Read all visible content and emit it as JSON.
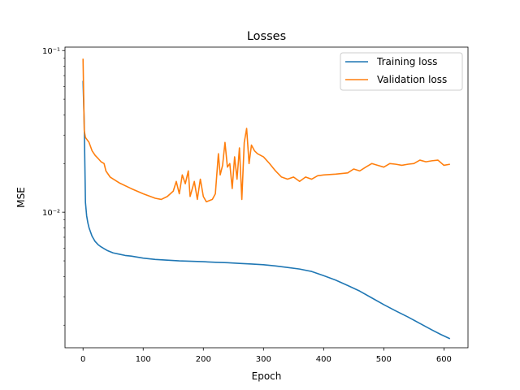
{
  "chart_data": {
    "type": "line",
    "title": "Losses",
    "xlabel": "Epoch",
    "ylabel": "MSE",
    "xlim": [
      -30,
      640
    ],
    "ylim": [
      0.00145,
      0.105
    ],
    "yscale": "log",
    "x_ticks": [
      0,
      100,
      200,
      300,
      400,
      500,
      600
    ],
    "y_major_ticks": [
      {
        "value": 0.01,
        "label": "10⁻²"
      },
      {
        "value": 0.1,
        "label": "10⁻¹"
      }
    ],
    "y_minor_ticks": [
      0.002,
      0.003,
      0.004,
      0.005,
      0.006,
      0.007,
      0.008,
      0.009,
      0.02,
      0.03,
      0.04,
      0.05,
      0.06,
      0.07,
      0.08,
      0.09
    ],
    "grid": false,
    "legend_position": "top-right",
    "series": [
      {
        "name": "Training loss",
        "color": "#1f77b4",
        "points": [
          [
            0,
            0.065
          ],
          [
            2,
            0.035
          ],
          [
            4,
            0.0115
          ],
          [
            6,
            0.0095
          ],
          [
            8,
            0.0086
          ],
          [
            10,
            0.008
          ],
          [
            15,
            0.0071
          ],
          [
            20,
            0.0066
          ],
          [
            25,
            0.0063
          ],
          [
            30,
            0.0061
          ],
          [
            40,
            0.0058
          ],
          [
            50,
            0.0056
          ],
          [
            60,
            0.0055
          ],
          [
            70,
            0.0054
          ],
          [
            80,
            0.00535
          ],
          [
            100,
            0.0052
          ],
          [
            120,
            0.0051
          ],
          [
            140,
            0.00505
          ],
          [
            160,
            0.005
          ],
          [
            180,
            0.00497
          ],
          [
            200,
            0.00494
          ],
          [
            220,
            0.0049
          ],
          [
            240,
            0.00487
          ],
          [
            260,
            0.00482
          ],
          [
            280,
            0.00478
          ],
          [
            300,
            0.00473
          ],
          [
            320,
            0.00465
          ],
          [
            340,
            0.00455
          ],
          [
            360,
            0.00445
          ],
          [
            380,
            0.0043
          ],
          [
            400,
            0.00405
          ],
          [
            420,
            0.0038
          ],
          [
            440,
            0.00352
          ],
          [
            460,
            0.00325
          ],
          [
            480,
            0.00295
          ],
          [
            500,
            0.00268
          ],
          [
            520,
            0.00245
          ],
          [
            540,
            0.00225
          ],
          [
            560,
            0.00205
          ],
          [
            580,
            0.00187
          ],
          [
            595,
            0.00175
          ],
          [
            610,
            0.00165
          ]
        ]
      },
      {
        "name": "Validation loss",
        "color": "#ff7f0e",
        "points": [
          [
            0,
            0.089
          ],
          [
            2,
            0.032
          ],
          [
            4,
            0.029
          ],
          [
            10,
            0.027
          ],
          [
            15,
            0.024
          ],
          [
            20,
            0.0225
          ],
          [
            25,
            0.0215
          ],
          [
            30,
            0.0205
          ],
          [
            35,
            0.02
          ],
          [
            38,
            0.018
          ],
          [
            45,
            0.0165
          ],
          [
            60,
            0.0152
          ],
          [
            80,
            0.014
          ],
          [
            100,
            0.013
          ],
          [
            120,
            0.0122
          ],
          [
            130,
            0.012
          ],
          [
            140,
            0.0125
          ],
          [
            150,
            0.0135
          ],
          [
            155,
            0.0155
          ],
          [
            160,
            0.013
          ],
          [
            165,
            0.017
          ],
          [
            170,
            0.015
          ],
          [
            175,
            0.018
          ],
          [
            178,
            0.0125
          ],
          [
            185,
            0.0155
          ],
          [
            190,
            0.012
          ],
          [
            195,
            0.016
          ],
          [
            200,
            0.0125
          ],
          [
            205,
            0.0116
          ],
          [
            210,
            0.0118
          ],
          [
            215,
            0.012
          ],
          [
            220,
            0.013
          ],
          [
            225,
            0.023
          ],
          [
            228,
            0.017
          ],
          [
            232,
            0.0195
          ],
          [
            236,
            0.027
          ],
          [
            240,
            0.019
          ],
          [
            244,
            0.02
          ],
          [
            248,
            0.014
          ],
          [
            252,
            0.022
          ],
          [
            256,
            0.016
          ],
          [
            260,
            0.025
          ],
          [
            264,
            0.012
          ],
          [
            268,
            0.027
          ],
          [
            272,
            0.033
          ],
          [
            276,
            0.02
          ],
          [
            280,
            0.026
          ],
          [
            285,
            0.024
          ],
          [
            290,
            0.023
          ],
          [
            300,
            0.022
          ],
          [
            310,
            0.02
          ],
          [
            320,
            0.018
          ],
          [
            330,
            0.0165
          ],
          [
            340,
            0.016
          ],
          [
            350,
            0.0165
          ],
          [
            360,
            0.0155
          ],
          [
            370,
            0.0165
          ],
          [
            380,
            0.016
          ],
          [
            390,
            0.0168
          ],
          [
            400,
            0.017
          ],
          [
            420,
            0.0172
          ],
          [
            440,
            0.0175
          ],
          [
            450,
            0.0185
          ],
          [
            460,
            0.018
          ],
          [
            470,
            0.019
          ],
          [
            480,
            0.02
          ],
          [
            490,
            0.0195
          ],
          [
            500,
            0.019
          ],
          [
            510,
            0.02
          ],
          [
            520,
            0.0198
          ],
          [
            530,
            0.0195
          ],
          [
            540,
            0.0198
          ],
          [
            550,
            0.02
          ],
          [
            560,
            0.021
          ],
          [
            570,
            0.0205
          ],
          [
            580,
            0.0208
          ],
          [
            590,
            0.021
          ],
          [
            600,
            0.0195
          ],
          [
            610,
            0.0198
          ]
        ]
      }
    ]
  }
}
